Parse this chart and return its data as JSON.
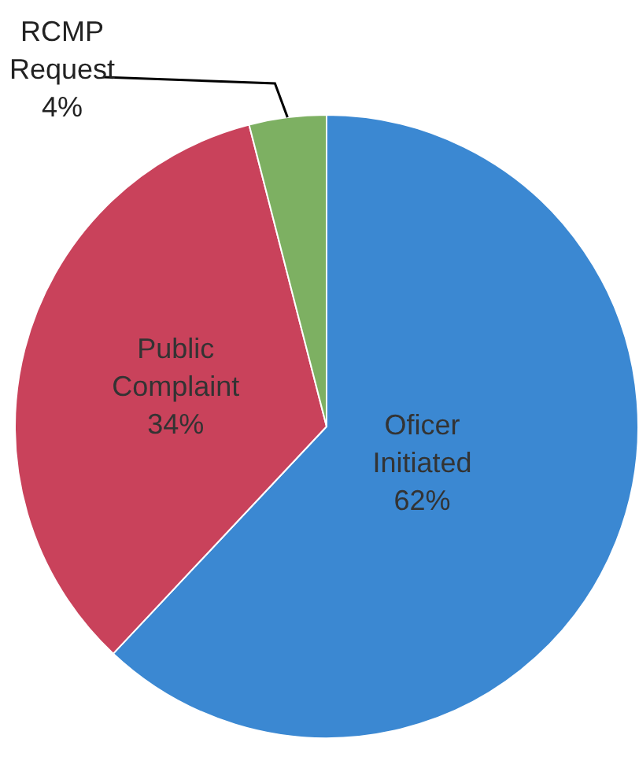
{
  "chart_data": {
    "type": "pie",
    "categories": [
      "Oficer Initiated",
      "Public Complaint",
      "RCMP Request"
    ],
    "values": [
      62,
      34,
      4
    ],
    "colors": [
      "#3b88d2",
      "#c9425b",
      "#7db062"
    ],
    "value_labels": [
      "62%",
      "34%",
      "4%"
    ],
    "legend": false
  }
}
